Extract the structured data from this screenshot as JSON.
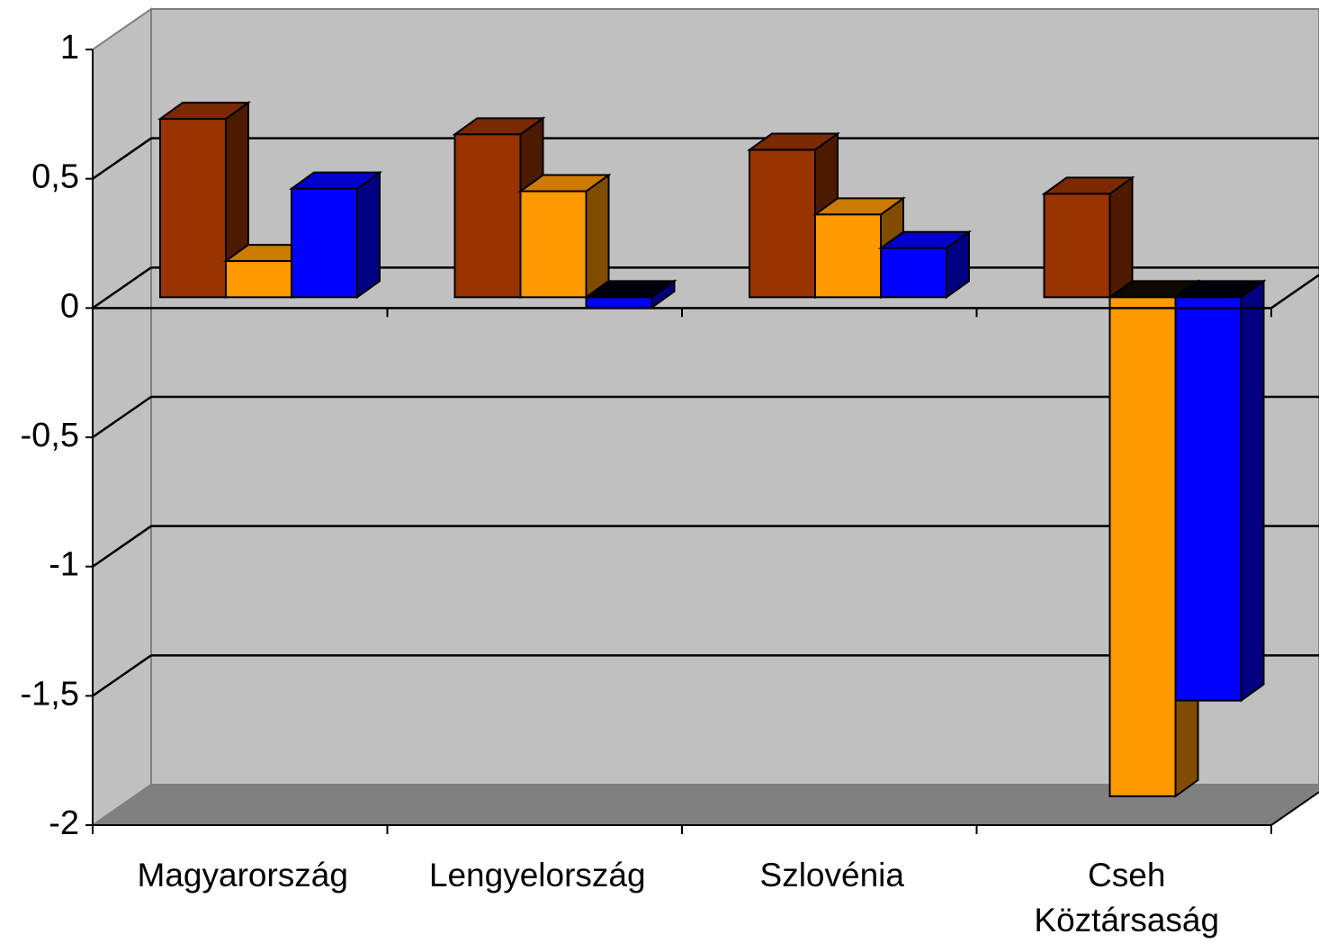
{
  "chart_data": {
    "type": "bar3d",
    "categories": [
      "Magyarország",
      "Lengyelország",
      "Szlovénia",
      "Cseh Köztársaság"
    ],
    "series": [
      {
        "color": "#993300",
        "values": [
          0.69,
          0.63,
          0.57,
          0.4
        ]
      },
      {
        "color": "#ff9900",
        "values": [
          0.14,
          0.41,
          0.32,
          -1.93
        ]
      },
      {
        "color": "#0000ff",
        "values": [
          0.42,
          -0.04,
          0.19,
          -1.56
        ]
      }
    ],
    "ylim": [
      -2,
      1
    ],
    "yticks": [
      -2,
      {
        "value": -1.5,
        "label": "-1,5"
      },
      -1,
      {
        "value": -0.5,
        "label": "-0,5"
      },
      0,
      {
        "value": 0.5,
        "label": "0,5"
      },
      1
    ],
    "grid": true
  }
}
